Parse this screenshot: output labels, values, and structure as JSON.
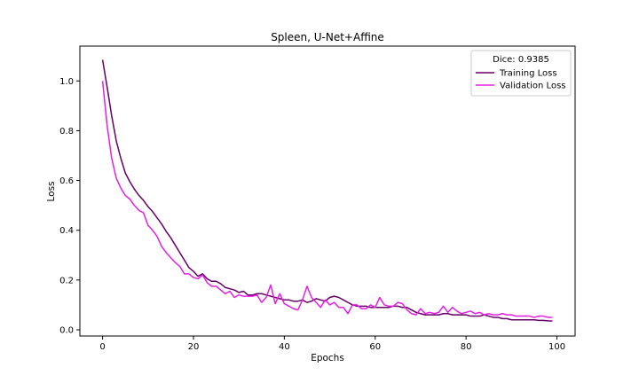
{
  "chart_data": {
    "type": "line",
    "title": "Spleen, U-Net+Affine",
    "xlabel": "Epochs",
    "ylabel": "Loss",
    "xlim": [
      -5,
      104
    ],
    "ylim": [
      -0.025,
      1.14
    ],
    "xticks": [
      0,
      20,
      40,
      60,
      80,
      100
    ],
    "yticks": [
      0.0,
      0.2,
      0.4,
      0.6,
      0.8,
      1.0
    ],
    "ytick_labels": [
      "0.0",
      "0.2",
      "0.4",
      "0.6",
      "0.8",
      "1.0"
    ],
    "grid": false,
    "legend": {
      "title": "Dice: 0.9385",
      "placement": "top-right"
    },
    "series": [
      {
        "name": "Training Loss",
        "color": "#660066",
        "x": [
          0,
          1,
          2,
          3,
          4,
          5,
          6,
          7,
          8,
          9,
          10,
          11,
          12,
          13,
          14,
          15,
          16,
          17,
          18,
          19,
          20,
          21,
          22,
          23,
          24,
          25,
          26,
          27,
          28,
          29,
          30,
          31,
          32,
          33,
          34,
          35,
          36,
          37,
          38,
          39,
          40,
          41,
          42,
          43,
          44,
          45,
          46,
          47,
          48,
          49,
          50,
          51,
          52,
          53,
          54,
          55,
          56,
          57,
          58,
          59,
          60,
          61,
          62,
          63,
          64,
          65,
          66,
          67,
          68,
          69,
          70,
          71,
          72,
          73,
          74,
          75,
          76,
          77,
          78,
          79,
          80,
          81,
          82,
          83,
          84,
          85,
          86,
          87,
          88,
          89,
          90,
          91,
          92,
          93,
          94,
          95,
          96,
          97,
          98,
          99
        ],
        "values": [
          1.085,
          0.975,
          0.86,
          0.76,
          0.69,
          0.63,
          0.595,
          0.565,
          0.54,
          0.52,
          0.495,
          0.475,
          0.45,
          0.425,
          0.395,
          0.37,
          0.34,
          0.31,
          0.28,
          0.25,
          0.235,
          0.215,
          0.225,
          0.205,
          0.195,
          0.195,
          0.185,
          0.17,
          0.165,
          0.16,
          0.15,
          0.155,
          0.14,
          0.14,
          0.145,
          0.145,
          0.14,
          0.135,
          0.13,
          0.125,
          0.12,
          0.12,
          0.115,
          0.115,
          0.12,
          0.11,
          0.115,
          0.125,
          0.12,
          0.115,
          0.13,
          0.135,
          0.13,
          0.12,
          0.11,
          0.1,
          0.095,
          0.095,
          0.095,
          0.09,
          0.09,
          0.09,
          0.09,
          0.09,
          0.095,
          0.095,
          0.09,
          0.09,
          0.08,
          0.07,
          0.065,
          0.06,
          0.06,
          0.06,
          0.06,
          0.065,
          0.065,
          0.06,
          0.06,
          0.06,
          0.06,
          0.055,
          0.055,
          0.055,
          0.06,
          0.055,
          0.05,
          0.05,
          0.045,
          0.045,
          0.04,
          0.04,
          0.04,
          0.04,
          0.04,
          0.04,
          0.038,
          0.038,
          0.036,
          0.035
        ]
      },
      {
        "name": "Validation Loss",
        "color": "#e61ee6",
        "x": [
          0,
          1,
          2,
          3,
          4,
          5,
          6,
          7,
          8,
          9,
          10,
          11,
          12,
          13,
          14,
          15,
          16,
          17,
          18,
          19,
          20,
          21,
          22,
          23,
          24,
          25,
          26,
          27,
          28,
          29,
          30,
          31,
          32,
          33,
          34,
          35,
          36,
          37,
          38,
          39,
          40,
          41,
          42,
          43,
          44,
          45,
          46,
          47,
          48,
          49,
          50,
          51,
          52,
          53,
          54,
          55,
          56,
          57,
          58,
          59,
          60,
          61,
          62,
          63,
          64,
          65,
          66,
          67,
          68,
          69,
          70,
          71,
          72,
          73,
          74,
          75,
          76,
          77,
          78,
          79,
          80,
          81,
          82,
          83,
          84,
          85,
          86,
          87,
          88,
          89,
          90,
          91,
          92,
          93,
          94,
          95,
          96,
          97,
          98,
          99
        ],
        "values": [
          1.0,
          0.82,
          0.69,
          0.61,
          0.57,
          0.54,
          0.525,
          0.5,
          0.48,
          0.47,
          0.42,
          0.4,
          0.375,
          0.335,
          0.31,
          0.29,
          0.27,
          0.255,
          0.225,
          0.225,
          0.21,
          0.205,
          0.22,
          0.19,
          0.175,
          0.175,
          0.16,
          0.145,
          0.155,
          0.13,
          0.14,
          0.135,
          0.135,
          0.135,
          0.14,
          0.11,
          0.13,
          0.18,
          0.105,
          0.145,
          0.105,
          0.095,
          0.085,
          0.08,
          0.12,
          0.175,
          0.13,
          0.11,
          0.09,
          0.12,
          0.1,
          0.11,
          0.09,
          0.09,
          0.065,
          0.1,
          0.1,
          0.085,
          0.085,
          0.1,
          0.09,
          0.13,
          0.1,
          0.095,
          0.095,
          0.11,
          0.105,
          0.08,
          0.065,
          0.06,
          0.085,
          0.065,
          0.07,
          0.065,
          0.07,
          0.095,
          0.07,
          0.09,
          0.075,
          0.065,
          0.07,
          0.075,
          0.065,
          0.07,
          0.06,
          0.065,
          0.06,
          0.06,
          0.065,
          0.06,
          0.06,
          0.055,
          0.055,
          0.055,
          0.055,
          0.05,
          0.055,
          0.055,
          0.05,
          0.05
        ]
      }
    ]
  }
}
